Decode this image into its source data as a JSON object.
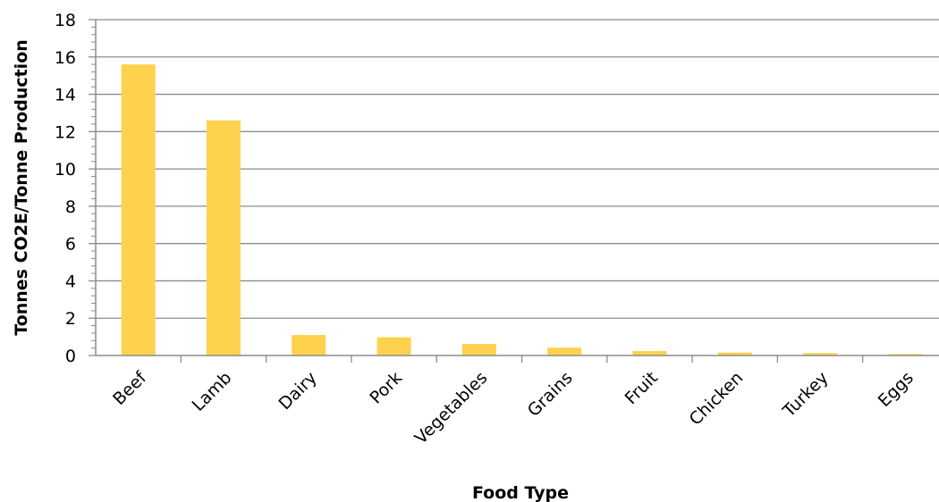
{
  "chart_data": {
    "type": "bar",
    "title": "",
    "xlabel": "Food Type",
    "ylabel": "Tonnes CO2E/Tonne Production",
    "categories": [
      "Beef",
      "Lamb",
      "Dairy",
      "Pork",
      "Vegetables",
      "Grains",
      "Fruit",
      "Chicken",
      "Turkey",
      "Eggs"
    ],
    "values": [
      15.6,
      12.6,
      1.1,
      0.98,
      0.62,
      0.42,
      0.24,
      0.16,
      0.13,
      0.08
    ],
    "ylim": [
      0,
      18
    ],
    "yticks": [
      "0",
      "2",
      "4",
      "6",
      "8",
      "10",
      "12",
      "14",
      "16",
      "18"
    ],
    "grid": true,
    "legend": "none",
    "colors": {
      "bar": "#FFD24D",
      "grid": "#8C8C8C",
      "axis": "#8C8C8C"
    }
  }
}
